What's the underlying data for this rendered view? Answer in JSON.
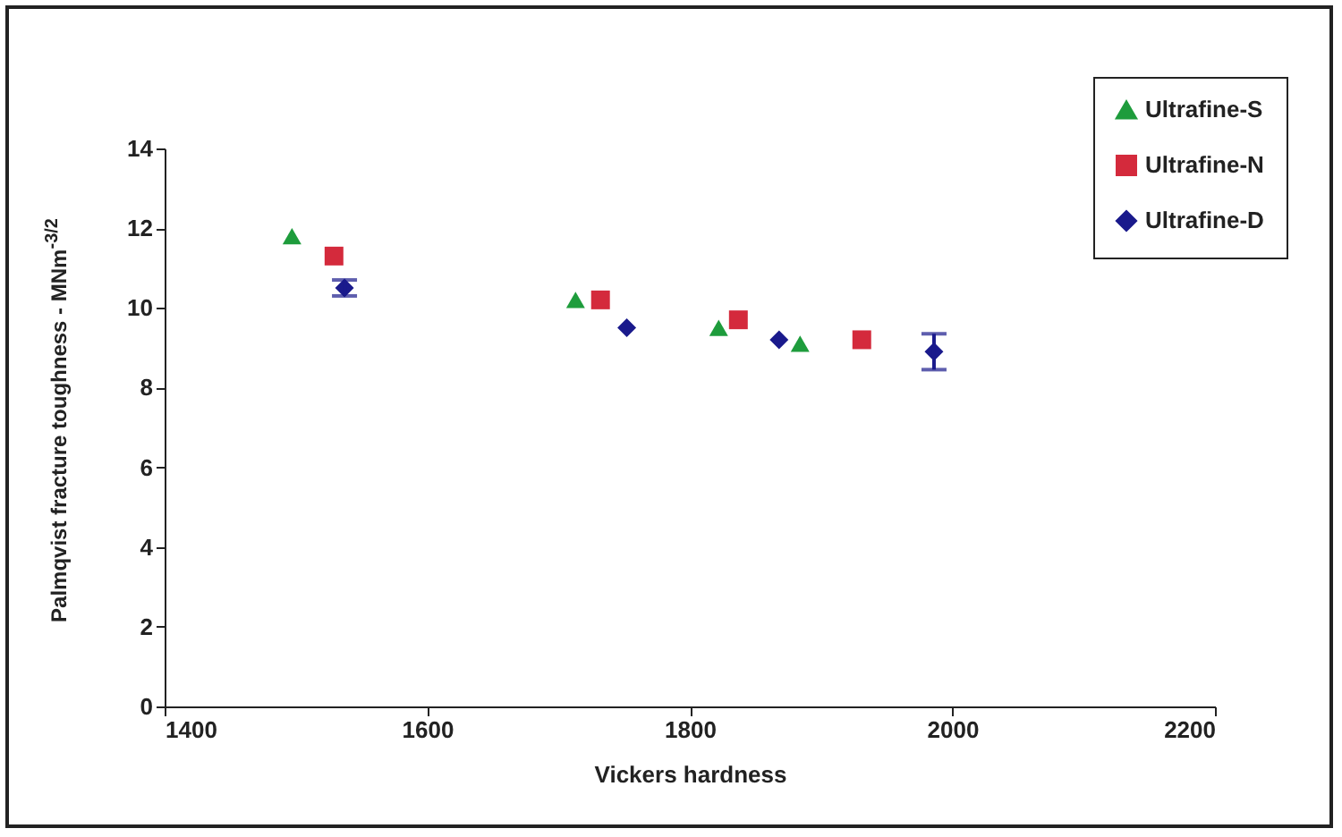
{
  "chart_data": {
    "type": "scatter",
    "xlabel": "Vickers hardness",
    "ylabel": "Palmqvist fracture toughness - MNm$^{-3/2}$",
    "xlim": [
      1400,
      2200
    ],
    "xticks": [
      1400,
      1600,
      1800,
      2000,
      2200
    ],
    "ylim": [
      0,
      14
    ],
    "yticks": [
      0,
      2,
      4,
      6,
      8,
      10,
      12,
      14
    ],
    "grid": false,
    "legend": "top right",
    "series": [
      {
        "name": "Ultrafine-S",
        "color": "#1e9c3c",
        "marker": "triangle",
        "x": [
          1497,
          1713,
          1822,
          1884
        ],
        "values": [
          11.8,
          10.2,
          9.5,
          9.1
        ]
      },
      {
        "name": "Ultrafine-N",
        "color": "#d42a3c",
        "marker": "square",
        "x": [
          1529,
          1732,
          1837,
          1931
        ],
        "values": [
          11.3,
          10.2,
          9.7,
          9.2
        ]
      },
      {
        "name": "Ultrafine-D",
        "color": "#1a1a8c",
        "marker": "diamond",
        "x": [
          1537,
          1752,
          1868,
          1986
        ],
        "values": [
          10.5,
          9.5,
          9.2,
          8.9
        ],
        "errors": [
          0.2,
          null,
          null,
          0.45
        ]
      }
    ]
  }
}
